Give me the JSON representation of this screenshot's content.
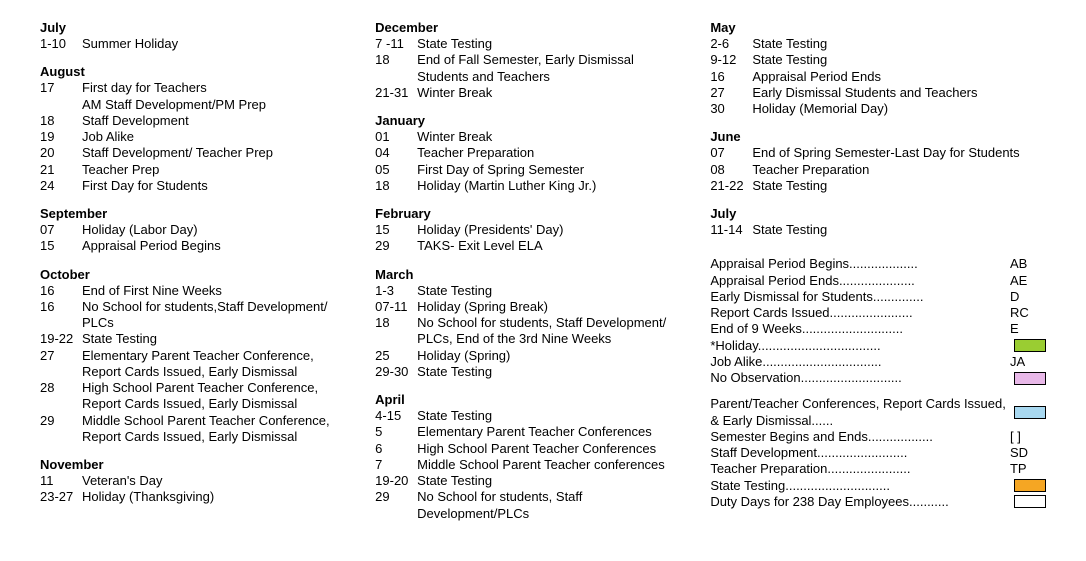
{
  "columns": [
    {
      "months": [
        {
          "name": "July",
          "events": [
            {
              "date": "1-10",
              "desc": "Summer Holiday"
            }
          ]
        },
        {
          "name": "August",
          "events": [
            {
              "date": "17",
              "desc": "First day for Teachers"
            },
            {
              "date": "",
              "desc": "AM Staff Development/PM Prep"
            },
            {
              "date": "18",
              "desc": "Staff Development"
            },
            {
              "date": "19",
              "desc": "Job Alike"
            },
            {
              "date": "20",
              "desc": "Staff Development/ Teacher Prep"
            },
            {
              "date": "21",
              "desc": "Teacher Prep"
            },
            {
              "date": "24",
              "desc": "First Day for Students"
            }
          ]
        },
        {
          "name": "September",
          "events": [
            {
              "date": "07",
              "desc": "Holiday (Labor Day)"
            },
            {
              "date": "15",
              "desc": "Appraisal Period Begins"
            }
          ]
        },
        {
          "name": "October",
          "events": [
            {
              "date": "16",
              "desc": "End of First Nine Weeks"
            },
            {
              "date": "16",
              "desc": "No School for students,Staff Development/ PLCs"
            },
            {
              "date": "19-22",
              "desc": "State Testing"
            },
            {
              "date": "27",
              "desc": "Elementary Parent Teacher Conference, Report Cards Issued, Early Dismissal"
            },
            {
              "date": "28",
              "desc": "High School Parent Teacher Conference, Report Cards Issued, Early Dismissal"
            },
            {
              "date": "29",
              "desc": "Middle School Parent Teacher Conference, Report Cards Issued, Early Dismissal"
            }
          ]
        },
        {
          "name": "November",
          "events": [
            {
              "date": "11",
              "desc": "Veteran's Day"
            },
            {
              "date": "23-27",
              "desc": "Holiday (Thanksgiving)"
            }
          ]
        }
      ]
    },
    {
      "months": [
        {
          "name": "December",
          "events": [
            {
              "date": "7 -11",
              "desc": "State Testing"
            },
            {
              "date": "18",
              "desc": "End of Fall Semester, Early Dismissal Students and Teachers"
            },
            {
              "date": "21-31",
              "desc": "Winter Break"
            }
          ]
        },
        {
          "name": "January",
          "events": [
            {
              "date": "01",
              "desc": "Winter Break"
            },
            {
              "date": "04",
              "desc": "Teacher Preparation"
            },
            {
              "date": "05",
              "desc": "First Day of Spring Semester"
            },
            {
              "date": "18",
              "desc": "Holiday (Martin Luther King Jr.)"
            }
          ]
        },
        {
          "name": "February",
          "events": [
            {
              "date": "15",
              "desc": "Holiday (Presidents' Day)"
            },
            {
              "date": "29",
              "desc": "TAKS- Exit Level ELA"
            }
          ]
        },
        {
          "name": "March",
          "events": [
            {
              "date": "1-3",
              "desc": "State Testing"
            },
            {
              "date": "07-11",
              "desc": "Holiday (Spring Break)"
            },
            {
              "date": "18",
              "desc": "No School for students, Staff Development/ PLCs, End of the 3rd Nine Weeks"
            },
            {
              "date": "25",
              "desc": "Holiday (Spring)"
            },
            {
              "date": "29-30",
              "desc": "State Testing"
            }
          ]
        },
        {
          "name": "April",
          "events": [
            {
              "date": "4-15",
              "desc": "State Testing"
            },
            {
              "date": "5",
              "desc": "Elementary Parent Teacher Conferences"
            },
            {
              "date": "6",
              "desc": "High School Parent Teacher Conferences"
            },
            {
              "date": "7",
              "desc": "Middle School Parent Teacher conferences"
            },
            {
              "date": "19-20",
              "desc": "State Testing"
            },
            {
              "date": "29",
              "desc": "No School for students, Staff Development/PLCs"
            }
          ]
        }
      ]
    },
    {
      "months": [
        {
          "name": "May",
          "events": [
            {
              "date": "2-6",
              "desc": "State Testing"
            },
            {
              "date": "9-12",
              "desc": "State Testing"
            },
            {
              "date": "16",
              "desc": "Appraisal Period Ends"
            },
            {
              "date": "27",
              "desc": "Early Dismissal Students and Teachers"
            },
            {
              "date": "30",
              "desc": "Holiday (Memorial Day)"
            }
          ]
        },
        {
          "name": "June",
          "events": [
            {
              "date": "07",
              "desc": "End of Spring Semester-Last Day for Students"
            },
            {
              "date": "08",
              "desc": "Teacher Preparation"
            },
            {
              "date": "21-22",
              "desc": "State Testing"
            }
          ]
        },
        {
          "name": "July",
          "events": [
            {
              "date": "11-14",
              "desc": "State Testing"
            }
          ]
        }
      ]
    }
  ],
  "legend": {
    "group1": [
      {
        "label": "Appraisal Period Begins",
        "code": "AB"
      },
      {
        "label": "Appraisal Period Ends",
        "code": "AE"
      },
      {
        "label": "Early Dismissal for Students",
        "code": "D"
      },
      {
        "label": "Report Cards Issued",
        "code": "RC"
      },
      {
        "label": "End of 9 Weeks",
        "code": "E"
      },
      {
        "label": "*Holiday",
        "swatch": "#9acd32"
      },
      {
        "label": "Job Alike",
        "code": "JA"
      },
      {
        "label": "No Observation",
        "swatch": "#e8b8e8"
      }
    ],
    "group2": [
      {
        "label": "Parent/Teacher Conferences, Report Cards Issued, & Early Dismissal",
        "swatch": "#a8d8f0",
        "multiline": true
      },
      {
        "label": "Semester Begins and Ends",
        "code": "[  ]"
      },
      {
        "label": "Staff Development",
        "code": "SD"
      },
      {
        "label": "Teacher Preparation",
        "code": "TP"
      },
      {
        "label": "State Testing",
        "swatch": "#f5a623"
      },
      {
        "label": "Duty Days for 238 Day Employees",
        "swatch": "#ffffff"
      }
    ]
  }
}
